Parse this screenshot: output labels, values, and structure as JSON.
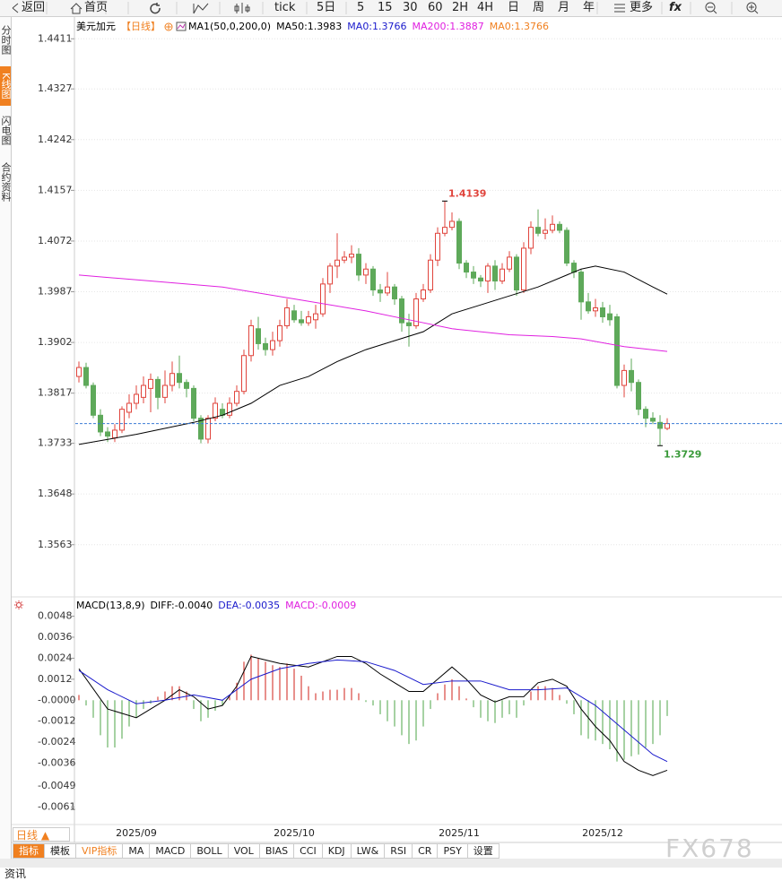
{
  "toolbar": {
    "items": [
      "返回",
      "首页",
      "tick",
      "5日",
      "5",
      "15",
      "30",
      "60",
      "2H",
      "4H",
      "日",
      "周",
      "月",
      "年",
      "更多"
    ],
    "formula": "fx"
  },
  "sidebar": {
    "tabs": [
      "分时图",
      "K线图",
      "闪电图",
      "合约资料"
    ]
  },
  "chart_data": [
    {
      "type": "candlestick",
      "title": "美元加元",
      "period": "【日线】",
      "indicator": "MA1(50,0,200,0)",
      "categories": [
        null,
        null,
        null,
        null,
        null,
        null,
        null,
        null,
        "2025/09",
        null,
        null,
        null,
        null,
        null,
        null,
        null,
        null,
        null,
        null,
        null,
        null,
        null,
        null,
        null,
        null,
        null,
        null,
        null,
        null,
        null,
        "2025/10",
        null,
        null,
        null,
        null,
        null,
        null,
        null,
        null,
        null,
        null,
        null,
        null,
        null,
        null,
        null,
        null,
        null,
        null,
        null,
        null,
        null,
        null,
        "2025/11",
        null,
        null,
        null,
        null,
        null,
        null,
        null,
        null,
        null,
        null,
        null,
        null,
        null,
        null,
        null,
        null,
        null,
        null,
        null,
        "2025/12",
        null,
        null,
        null,
        null,
        null,
        null,
        null,
        null,
        null
      ],
      "open": [
        1.3845,
        1.386,
        1.383,
        1.378,
        1.3752,
        1.3742,
        1.3755,
        1.3785,
        1.38,
        1.381,
        1.3825,
        1.384,
        1.381,
        1.383,
        1.385,
        1.3835,
        1.3825,
        1.3775,
        1.374,
        1.3775,
        1.379,
        1.378,
        1.38,
        1.382,
        1.388,
        1.3925,
        1.39,
        1.389,
        1.3905,
        1.393,
        1.3955,
        1.394,
        1.3935,
        1.394,
        1.395,
        1.4,
        1.403,
        1.404,
        1.4045,
        1.405,
        1.4015,
        1.4025,
        1.399,
        1.3985,
        1.3995,
        1.3975,
        1.3935,
        1.393,
        1.3975,
        1.399,
        1.404,
        1.4085,
        1.4095,
        1.4105,
        1.4035,
        1.402,
        1.401,
        1.4005,
        1.403,
        1.4005,
        1.4025,
        1.4045,
        1.399,
        1.406,
        1.4095,
        1.4085,
        1.409,
        1.41,
        1.409,
        1.4035,
        1.402,
        1.397,
        1.3955,
        1.396,
        1.395,
        1.3945,
        1.383,
        1.3855,
        1.3835,
        1.379,
        1.3775,
        1.3768,
        1.3758
      ],
      "high": [
        1.387,
        1.3868,
        1.3835,
        1.379,
        1.376,
        1.3765,
        1.3795,
        1.3815,
        1.383,
        1.3845,
        1.385,
        1.3845,
        1.3855,
        1.387,
        1.388,
        1.384,
        1.383,
        1.378,
        1.378,
        1.381,
        1.38,
        1.381,
        1.383,
        1.389,
        1.394,
        1.3945,
        1.391,
        1.392,
        1.394,
        1.3975,
        1.3965,
        1.3955,
        1.3955,
        1.3965,
        1.401,
        1.4035,
        1.4085,
        1.4055,
        1.4065,
        1.406,
        1.4035,
        1.403,
        1.4,
        1.402,
        1.4,
        1.398,
        1.395,
        1.3985,
        1.4,
        1.405,
        1.4095,
        1.4139,
        1.412,
        1.411,
        1.404,
        1.403,
        1.4015,
        1.4035,
        1.404,
        1.4035,
        1.4055,
        1.405,
        1.407,
        1.4105,
        1.4125,
        1.411,
        1.4115,
        1.4105,
        1.4095,
        1.404,
        1.4025,
        1.3985,
        1.3975,
        1.397,
        1.3965,
        1.395,
        1.3865,
        1.3875,
        1.384,
        1.3795,
        1.3785,
        1.378,
        1.3775
      ],
      "low": [
        1.3835,
        1.3825,
        1.3775,
        1.3745,
        1.3735,
        1.3735,
        1.375,
        1.3775,
        1.379,
        1.38,
        1.3785,
        1.379,
        1.38,
        1.382,
        1.3825,
        1.381,
        1.377,
        1.3733,
        1.3733,
        1.377,
        1.3775,
        1.3775,
        1.3795,
        1.3815,
        1.387,
        1.389,
        1.388,
        1.388,
        1.3895,
        1.3925,
        1.3935,
        1.393,
        1.393,
        1.3925,
        1.3945,
        1.3985,
        1.401,
        1.4035,
        1.4035,
        1.4005,
        1.4,
        1.398,
        1.397,
        1.398,
        1.3965,
        1.392,
        1.3895,
        1.3925,
        1.397,
        1.3985,
        1.403,
        1.408,
        1.409,
        1.4025,
        1.401,
        1.4,
        1.3995,
        1.3985,
        1.399,
        1.4,
        1.402,
        1.398,
        1.3985,
        1.405,
        1.408,
        1.4075,
        1.4085,
        1.4085,
        1.403,
        1.401,
        1.394,
        1.395,
        1.3945,
        1.3935,
        1.393,
        1.3825,
        1.381,
        1.382,
        1.378,
        1.376,
        1.3765,
        1.3729,
        1.3755
      ],
      "close": [
        1.386,
        1.383,
        1.378,
        1.3752,
        1.3745,
        1.3755,
        1.379,
        1.38,
        1.3815,
        1.383,
        1.384,
        1.381,
        1.383,
        1.385,
        1.3835,
        1.3825,
        1.3775,
        1.374,
        1.3775,
        1.38,
        1.378,
        1.38,
        1.382,
        1.388,
        1.393,
        1.39,
        1.389,
        1.3905,
        1.393,
        1.396,
        1.394,
        1.3935,
        1.3945,
        1.395,
        1.4,
        1.403,
        1.404,
        1.4045,
        1.405,
        1.4015,
        1.4025,
        1.399,
        1.3985,
        1.3995,
        1.3975,
        1.3935,
        1.393,
        1.3975,
        1.399,
        1.404,
        1.4085,
        1.4095,
        1.4105,
        1.4035,
        1.402,
        1.401,
        1.4005,
        1.403,
        1.4005,
        1.4025,
        1.4045,
        1.399,
        1.406,
        1.4095,
        1.4085,
        1.409,
        1.41,
        1.409,
        1.4035,
        1.402,
        1.397,
        1.3955,
        1.396,
        1.3945,
        1.394,
        1.383,
        1.3855,
        1.3835,
        1.379,
        1.3775,
        1.377,
        1.3758,
        1.3766
      ],
      "up_color": "#e0443c",
      "down_color": "#5ea95a",
      "series": [
        {
          "name": "MA50:1.3983",
          "color": "#000000",
          "x": [
            0,
            8,
            16,
            20,
            24,
            28,
            32,
            36,
            40,
            44,
            48,
            52,
            56,
            60,
            64,
            68,
            70,
            72,
            76,
            80,
            82
          ],
          "values": [
            1.3731,
            1.3748,
            1.3768,
            1.378,
            1.38,
            1.383,
            1.3845,
            1.387,
            1.389,
            1.3905,
            1.392,
            1.395,
            1.3965,
            1.398,
            1.3995,
            1.4015,
            1.4025,
            1.403,
            1.402,
            1.3995,
            1.3983
          ]
        },
        {
          "name": "MA0:1.3766",
          "color": "#1a1acc"
        },
        {
          "name": "MA200:1.3887",
          "color": "#e020e0",
          "x": [
            0,
            10,
            20,
            30,
            40,
            46,
            52,
            60,
            66,
            70,
            76,
            82
          ],
          "values": [
            1.4015,
            1.4005,
            1.3995,
            1.3975,
            1.3955,
            1.394,
            1.3925,
            1.3915,
            1.3912,
            1.3908,
            1.3895,
            1.3887
          ]
        },
        {
          "name": "MA0:1.3766",
          "color": "#f08020"
        }
      ],
      "last_price_line": {
        "value": 1.3766,
        "color": "#3a7bd5"
      },
      "annotations": [
        {
          "index": 51,
          "value": 1.4139,
          "color": "#e0443c"
        },
        {
          "index": 81,
          "value": 1.3729,
          "color": "#3a9a3a"
        }
      ],
      "ylim": [
        1.3477,
        1.4449
      ],
      "yticks": [
        1.4411,
        1.4327,
        1.4242,
        1.4157,
        1.4072,
        1.3987,
        1.3902,
        1.3817,
        1.3733,
        1.3648,
        1.3563
      ],
      "grid": true
    },
    {
      "type": "macd",
      "title": "MACD(13,8,9)",
      "series": [
        {
          "name": "DIFF:-0.0040",
          "color": "#000000",
          "x": [
            0,
            4,
            8,
            12,
            14,
            16,
            18,
            20,
            22,
            24,
            26,
            28,
            30,
            32,
            34,
            36,
            38,
            40,
            42,
            44,
            46,
            48,
            50,
            52,
            54,
            56,
            58,
            60,
            62,
            64,
            66,
            68,
            70,
            72,
            74,
            76,
            78,
            80,
            82
          ],
          "values": [
            0.0018,
            -0.0005,
            -0.001,
            0.0,
            0.0006,
            0.0002,
            -0.0005,
            -0.0003,
            0.0008,
            0.0025,
            0.0023,
            0.0021,
            0.002,
            0.0019,
            0.0022,
            0.0025,
            0.0025,
            0.0021,
            0.0015,
            0.001,
            0.0005,
            0.0005,
            0.0012,
            0.0019,
            0.0012,
            0.0003,
            -0.0001,
            0.0002,
            0.0002,
            0.001,
            0.0012,
            0.0008,
            -0.0005,
            -0.0015,
            -0.0023,
            -0.0035,
            -0.004,
            -0.0043,
            -0.004
          ]
        },
        {
          "name": "DEA:-0.0035",
          "color": "#1a1acc",
          "x": [
            0,
            4,
            8,
            12,
            16,
            20,
            24,
            28,
            32,
            36,
            40,
            44,
            48,
            52,
            56,
            60,
            64,
            68,
            72,
            76,
            80,
            82
          ],
          "values": [
            0.0017,
            0.0006,
            -0.0002,
            0.0,
            0.0003,
            0.0,
            0.0012,
            0.0018,
            0.0021,
            0.0023,
            0.0022,
            0.0017,
            0.0009,
            0.0011,
            0.0011,
            0.0006,
            0.0006,
            0.0007,
            -0.0003,
            -0.0017,
            -0.0031,
            -0.0035
          ]
        }
      ],
      "histogram": {
        "name": "MACD:-0.0009",
        "color": "#e020e0",
        "up_color": "#d9473f",
        "down_color": "#6cb466",
        "values": [
          0.0003,
          -0.0003,
          -0.001,
          -0.002,
          -0.0027,
          -0.0027,
          -0.0022,
          -0.0015,
          -0.001,
          -0.0005,
          -0.0002,
          0.0002,
          0.0005,
          0.0008,
          0.0008,
          0.0005,
          -0.0005,
          -0.0012,
          -0.001,
          -0.0006,
          -0.0003,
          0.0002,
          0.001,
          0.0022,
          0.0026,
          0.0024,
          0.0022,
          0.002,
          0.0019,
          0.0021,
          0.0018,
          0.0014,
          0.0008,
          0.0004,
          0.0005,
          0.0006,
          0.0006,
          0.0007,
          0.0007,
          0.0004,
          -0.0001,
          -0.0003,
          -0.0008,
          -0.0012,
          -0.0015,
          -0.002,
          -0.0025,
          -0.0023,
          -0.0015,
          -0.0005,
          0.0004,
          0.0009,
          0.0012,
          0.0008,
          0.0001,
          -0.0004,
          -0.001,
          -0.0012,
          -0.0013,
          -0.001,
          -0.0008,
          -0.001,
          -0.0003,
          0.0005,
          0.0008,
          0.0008,
          0.0007,
          0.0003,
          -0.0002,
          -0.0008,
          -0.002,
          -0.0022,
          -0.0023,
          -0.0025,
          -0.0028,
          -0.0035,
          -0.0034,
          -0.0032,
          -0.0031,
          -0.0027,
          -0.0025,
          -0.002,
          -0.0009
        ]
      },
      "ylim": [
        -0.0071,
        0.0058
      ],
      "yticks": [
        0.0048,
        0.0036,
        0.0024,
        0.0012,
        {
          "value": 0,
          "label": "-0.0000"
        },
        -0.0012,
        -0.0024,
        -0.0036,
        -0.0049,
        -0.0061
      ]
    }
  ],
  "footer": {
    "period": "日线 ▲",
    "tabs": [
      "指标",
      "模板",
      "VIP指标",
      "MA",
      "MACD",
      "BOLL",
      "VOL",
      "BIAS",
      "CCI",
      "KDJ",
      "LW&",
      "RSI",
      "CR",
      "PSY",
      "设置"
    ],
    "watermark": "FX678",
    "news": "资讯"
  }
}
